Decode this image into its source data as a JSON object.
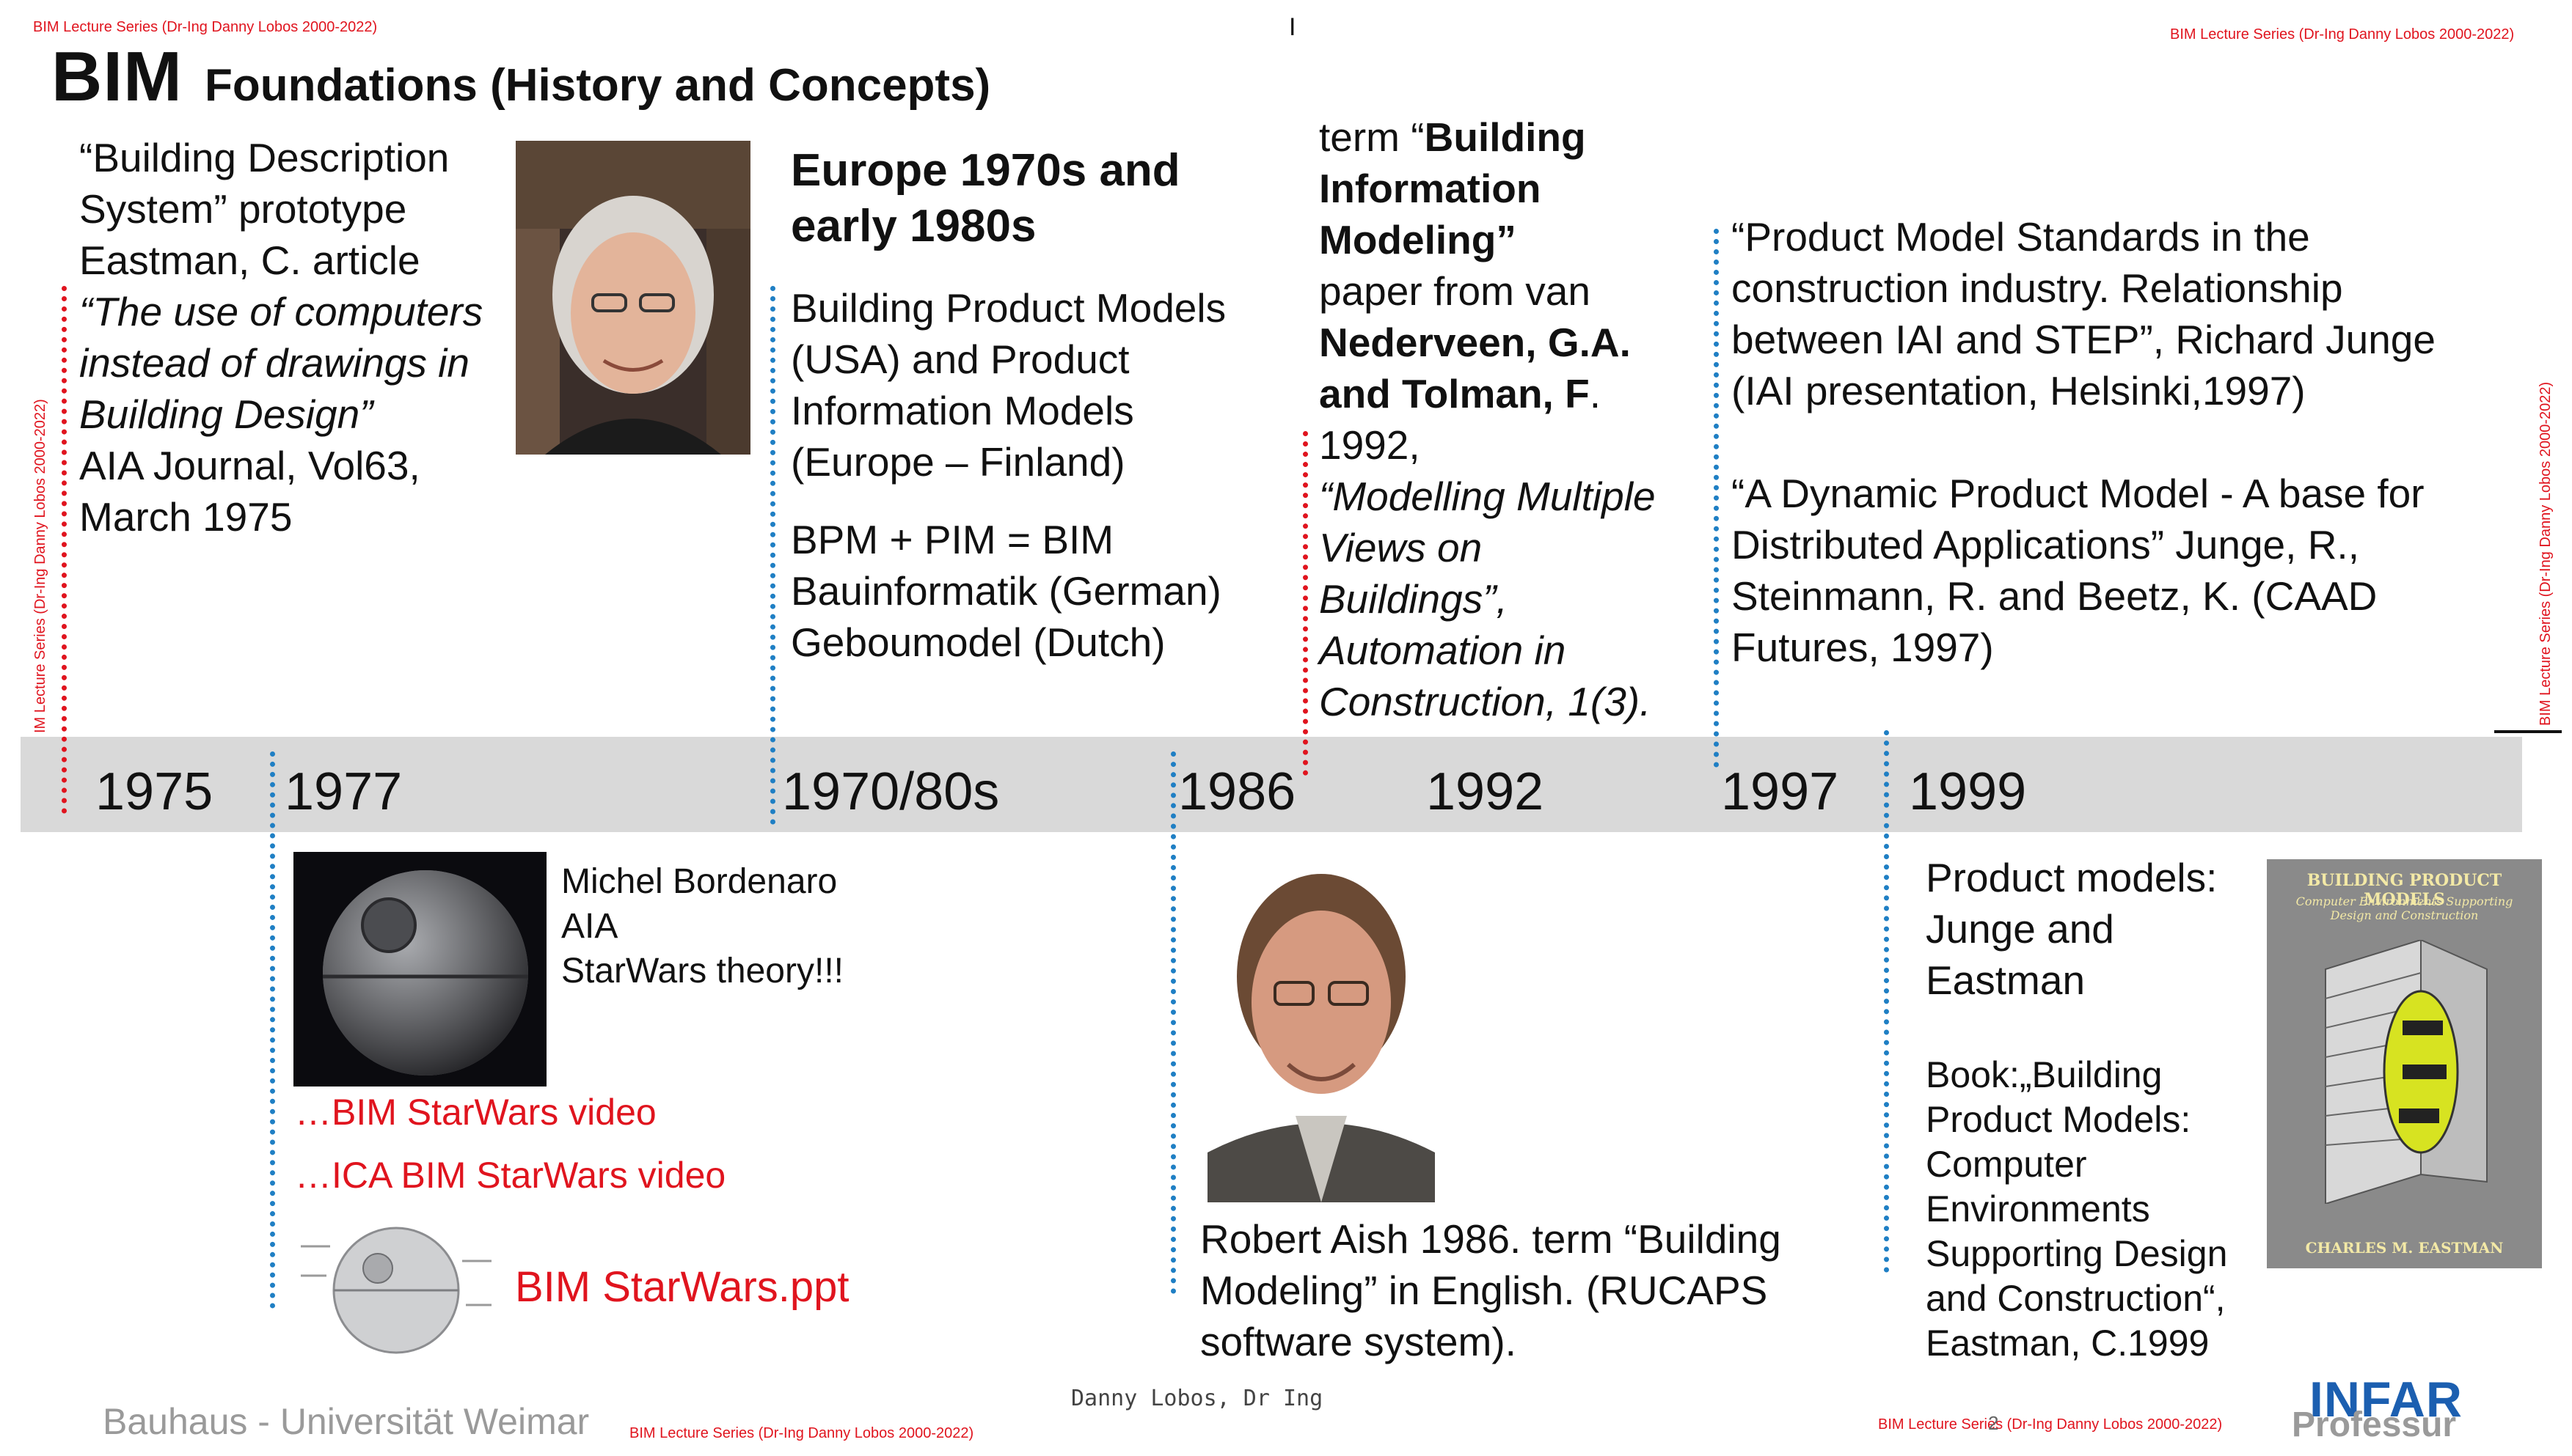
{
  "header": {
    "series_left": "BIM Lecture Series (Dr-Ing Danny Lobos 2000-2022)",
    "series_right": "BIM Lecture Series (Dr-Ing Danny Lobos 2000-2022)",
    "series_vertical_left": "IM Lecture Series (Dr-Ing Danny Lobos 2000-2022)",
    "series_vertical_right": "BIM Lecture Series (Dr-Ing Danny Lobos 2000-2022)",
    "cursor": "I",
    "title_main": "BIM",
    "title_sub": "Foundations (History and Concepts)"
  },
  "col1975": {
    "line1": "“Building Description",
    "line2": "System” prototype",
    "line3": "Eastman, C. article",
    "italic": "“The use of computers\ninstead of drawings in\nBuilding Design”",
    "rest": "AIA Journal, Vol63,\nMarch 1975"
  },
  "col1970": {
    "heading": "Europe 1970s and\nearly 1980s",
    "models": "Building Product Models\n(USA) and    Product\nInformation Models\n(Europe – Finland)",
    "bim": "BPM + PIM = BIM\nBauinformatik (German)\nGeboumodel (Dutch)"
  },
  "col1992": {
    "term": "term “",
    "bold1": "Building\nInformation\nModeling”",
    "paper": "paper from van",
    "authors": "Nederveen, G.A.\nand Tolman, F",
    "dot": ".",
    "year": "1992,",
    "italic": "“Modelling Multiple\nViews on\nBuildings”,\nAutomation in\nConstruction, 1(3)."
  },
  "col1997": {
    "p1": "“Product Model Standards in the\nconstruction industry. Relationship\nbetween IAI and STEP”, Richard Junge\n(IAI presentation, Helsinki,1997)",
    "p2": "“A Dynamic Product Model - A base for\nDistributed Applications”  Junge, R.,\nSteinmann, R. and Beetz, K. (CAAD\nFutures, 1997)"
  },
  "timeline": {
    "years": [
      "1975",
      "1977",
      "1970/80s",
      "1986",
      "1992",
      "1997",
      "1999"
    ]
  },
  "col1977": {
    "caption": "Michel Bordenaro\nAIA\nStarWars theory!!!",
    "link1": "…BIM StarWars video",
    "link2": "…ICA BIM StarWars video",
    "link3": "BIM StarWars.ppt"
  },
  "col1986": {
    "caption": "Robert Aish 1986. term “Building\nModeling” in English. (RUCAPS\nsoftware system)."
  },
  "col1999": {
    "heading": "Product models:\nJunge and\nEastman",
    "book": "Book:„Building\nProduct Models:\nComputer\nEnvironments\nSupporting Design\nand Construction“,\nEastman, C.1999",
    "cover_title": "BUILDING PRODUCT MODELS",
    "cover_subtitle": "Computer Environments Supporting\nDesign and Construction",
    "cover_author": "CHARLES M. EASTMAN"
  },
  "footer": {
    "university": "Bauhaus - Universität  Weimar",
    "series_center": "BIM Lecture Series (Dr-Ing Danny Lobos 2000-2022)",
    "author": "Danny Lobos, Dr Ing",
    "series_right": "BIM Lecture Series (Dr-Ing Danny Lobos 2000-2022)",
    "page_num": "2",
    "logo": "INFAR",
    "logo_sub": "Professur"
  },
  "colors": {
    "accent_red": "#e0141e",
    "timeline_blue": "#1f7fc4",
    "band_gray": "#d9d9d9",
    "logo_blue": "#1c5fb0"
  }
}
